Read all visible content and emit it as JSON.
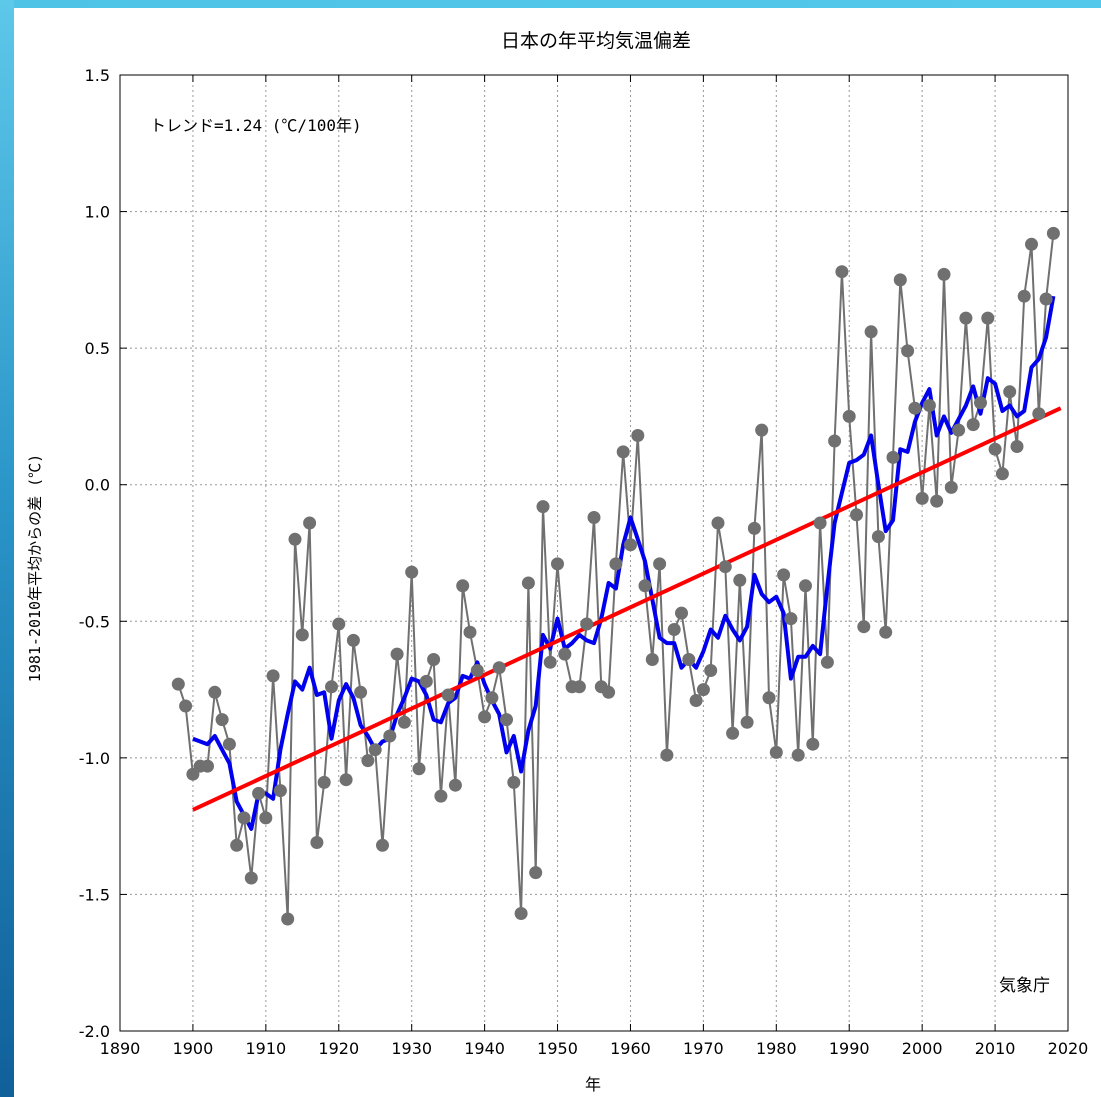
{
  "chart_data": {
    "type": "line",
    "title": "日本の年平均気温偏差",
    "xlabel": "年",
    "ylabel": "1981-2010年平均からの差 (℃)",
    "annotation": "トレンド=1.24 (℃/100年)",
    "credit": "気象庁",
    "xlim": [
      1890,
      2020
    ],
    "ylim": [
      -2.0,
      1.5
    ],
    "xticks": [
      1890,
      1900,
      1910,
      1920,
      1930,
      1940,
      1950,
      1960,
      1970,
      1980,
      1990,
      2000,
      2010,
      2020
    ],
    "yticks": [
      -2.0,
      -1.5,
      -1.0,
      -0.5,
      0.0,
      0.5,
      1.0,
      1.5
    ],
    "ytick_labels": [
      "-2.0",
      "-1.5",
      "-1.0",
      "-0.5",
      "0.0",
      "0.5",
      "1.0",
      "1.5"
    ],
    "grid": true,
    "colors": {
      "annual": "#707070",
      "moving": "#0000ee",
      "trend": "#ff0000"
    },
    "series": [
      {
        "key": "annual",
        "start_year": 1898,
        "values": [
          -0.73,
          -0.81,
          -1.06,
          -1.03,
          -1.03,
          -0.76,
          -0.86,
          -0.95,
          -1.32,
          -1.22,
          -1.44,
          -1.13,
          -1.22,
          -0.7,
          -1.12,
          -1.59,
          -0.2,
          -0.55,
          -0.14,
          -1.31,
          -1.09,
          -0.74,
          -0.51,
          -1.08,
          -0.57,
          -0.76,
          -1.01,
          -0.97,
          -1.32,
          -0.92,
          -0.62,
          -0.87,
          -0.32,
          -1.04,
          -0.72,
          -0.64,
          -1.14,
          -0.77,
          -1.1,
          -0.37,
          -0.54,
          -0.68,
          -0.85,
          -0.78,
          -0.67,
          -0.86,
          -1.09,
          -1.57,
          -0.36,
          -1.42,
          -0.08,
          -0.65,
          -0.29,
          -0.62,
          -0.74,
          -0.74,
          -0.51,
          -0.12,
          -0.74,
          -0.76,
          -0.29,
          0.12,
          -0.22,
          0.18,
          -0.37,
          -0.64,
          -0.29,
          -0.99,
          -0.53,
          -0.47,
          -0.64,
          -0.79,
          -0.75,
          -0.68,
          -0.14,
          -0.3,
          -0.91,
          -0.35,
          -0.87,
          -0.16,
          0.2,
          -0.78,
          -0.98,
          -0.33,
          -0.49,
          -0.99,
          -0.37,
          -0.95,
          -0.14,
          -0.65,
          0.16,
          0.78,
          0.25,
          -0.11,
          -0.52,
          0.56,
          -0.19,
          -0.54,
          0.1,
          0.75,
          0.49,
          0.28,
          -0.05,
          0.29,
          -0.06,
          0.77,
          -0.01,
          0.2,
          0.61,
          0.22,
          0.3,
          0.61,
          0.13,
          0.04,
          0.34,
          0.14,
          0.69,
          0.88,
          0.26,
          0.68,
          0.92
        ]
      },
      {
        "key": "moving",
        "start_year": 1900,
        "values": [
          -0.93,
          -0.94,
          -0.95,
          -0.92,
          -0.97,
          -1.02,
          -1.16,
          -1.21,
          -1.26,
          -1.13,
          -1.13,
          -1.15,
          -0.97,
          -0.84,
          -0.72,
          -0.75,
          -0.67,
          -0.77,
          -0.76,
          -0.93,
          -0.79,
          -0.73,
          -0.78,
          -0.88,
          -0.92,
          -0.97,
          -0.94,
          -0.93,
          -0.84,
          -0.78,
          -0.71,
          -0.72,
          -0.77,
          -0.86,
          -0.87,
          -0.8,
          -0.78,
          -0.7,
          -0.71,
          -0.65,
          -0.73,
          -0.79,
          -0.84,
          -0.98,
          -0.92,
          -1.05,
          -0.9,
          -0.81,
          -0.55,
          -0.6,
          -0.49,
          -0.6,
          -0.58,
          -0.55,
          -0.57,
          -0.58,
          -0.49,
          -0.36,
          -0.38,
          -0.22,
          -0.12,
          -0.2,
          -0.28,
          -0.42,
          -0.56,
          -0.58,
          -0.58,
          -0.67,
          -0.64,
          -0.67,
          -0.61,
          -0.53,
          -0.56,
          -0.48,
          -0.53,
          -0.57,
          -0.52,
          -0.33,
          -0.4,
          -0.43,
          -0.41,
          -0.47,
          -0.71,
          -0.63,
          -0.63,
          -0.59,
          -0.62,
          -0.37,
          -0.14,
          -0.03,
          0.08,
          0.09,
          0.11,
          0.18,
          0.0,
          -0.17,
          -0.13,
          0.13,
          0.12,
          0.23,
          0.3,
          0.35,
          0.18,
          0.25,
          0.19,
          0.24,
          0.29,
          0.36,
          0.26,
          0.39,
          0.37,
          0.27,
          0.29,
          0.25,
          0.27,
          0.43,
          0.46,
          0.54,
          0.69
        ]
      },
      {
        "key": "trend",
        "x": [
          1900,
          2019
        ],
        "values": [
          -1.19,
          0.28
        ]
      }
    ]
  }
}
